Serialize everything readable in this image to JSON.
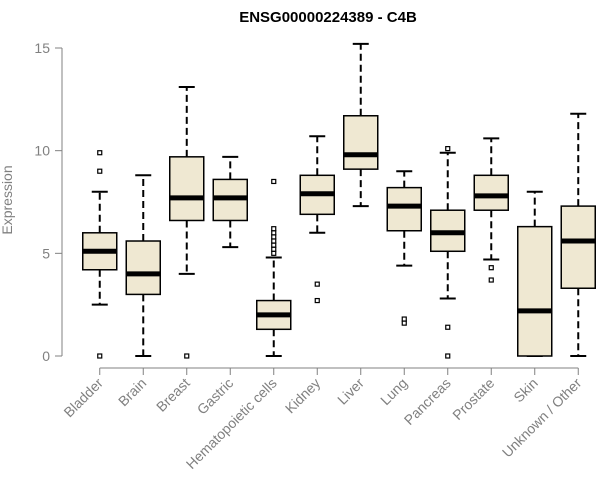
{
  "chart_data": {
    "type": "boxplot",
    "title": "ENSG00000224389 - C4B",
    "xlabel": "",
    "ylabel": "Expression",
    "ylim": [
      0,
      15
    ],
    "yticks": [
      0,
      5,
      10,
      15
    ],
    "box_color": "#efe8d2",
    "categories": [
      "Bladder",
      "Brain",
      "Breast",
      "Gastric",
      "Hematopoietic cells",
      "Kidney",
      "Liver",
      "Lung",
      "Pancreas",
      "Prostate",
      "Skin",
      "Unknown / Other"
    ],
    "boxes": [
      {
        "category": "Bladder",
        "whisker_low": 2.5,
        "q1": 4.2,
        "median": 5.1,
        "q3": 6.0,
        "whisker_high": 8.0,
        "outliers": [
          0.0,
          9.0,
          9.9
        ]
      },
      {
        "category": "Brain",
        "whisker_low": 0.0,
        "q1": 3.0,
        "median": 4.0,
        "q3": 5.6,
        "whisker_high": 8.8,
        "outliers": []
      },
      {
        "category": "Breast",
        "whisker_low": 4.0,
        "q1": 6.6,
        "median": 7.7,
        "q3": 9.7,
        "whisker_high": 13.1,
        "outliers": [
          0.0
        ]
      },
      {
        "category": "Gastric",
        "whisker_low": 5.3,
        "q1": 6.6,
        "median": 7.7,
        "q3": 8.6,
        "whisker_high": 9.7,
        "outliers": []
      },
      {
        "category": "Hematopoietic cells",
        "whisker_low": 0.0,
        "q1": 1.3,
        "median": 2.0,
        "q3": 2.7,
        "whisker_high": 4.8,
        "outliers": [
          5.0,
          5.2,
          5.4,
          5.6,
          5.8,
          6.0,
          6.2,
          8.5
        ]
      },
      {
        "category": "Kidney",
        "whisker_low": 6.0,
        "q1": 6.9,
        "median": 7.9,
        "q3": 8.8,
        "whisker_high": 10.7,
        "outliers": [
          3.5,
          2.7
        ]
      },
      {
        "category": "Liver",
        "whisker_low": 7.3,
        "q1": 9.1,
        "median": 9.8,
        "q3": 11.7,
        "whisker_high": 15.2,
        "outliers": []
      },
      {
        "category": "Lung",
        "whisker_low": 4.4,
        "q1": 6.1,
        "median": 7.3,
        "q3": 8.2,
        "whisker_high": 9.0,
        "outliers": [
          1.8,
          1.6
        ]
      },
      {
        "category": "Pancreas",
        "whisker_low": 2.8,
        "q1": 5.1,
        "median": 6.0,
        "q3": 7.1,
        "whisker_high": 9.9,
        "outliers": [
          10.1,
          1.4,
          0.0
        ]
      },
      {
        "category": "Prostate",
        "whisker_low": 4.7,
        "q1": 7.1,
        "median": 7.8,
        "q3": 8.8,
        "whisker_high": 10.6,
        "outliers": [
          4.3,
          3.7
        ]
      },
      {
        "category": "Skin",
        "whisker_low": 0.0,
        "q1": 0.0,
        "median": 2.2,
        "q3": 6.3,
        "whisker_high": 8.0,
        "outliers": []
      },
      {
        "category": "Unknown / Other",
        "whisker_low": 0.0,
        "q1": 3.3,
        "median": 5.6,
        "q3": 7.3,
        "whisker_high": 11.8,
        "outliers": []
      }
    ]
  }
}
